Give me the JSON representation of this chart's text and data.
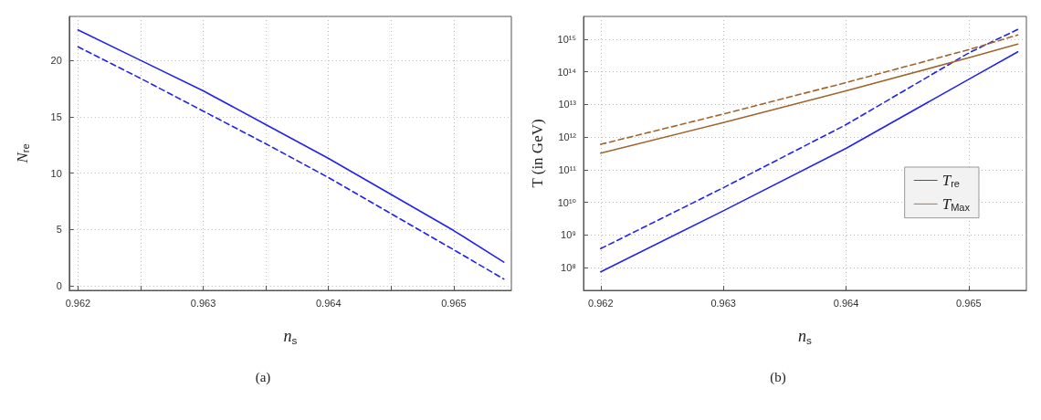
{
  "chart_data": [
    {
      "type": "line",
      "xlabel": "n$_{s}$",
      "ylabel": "N$_{re}$",
      "annotations": [
        "(a)"
      ],
      "xlim": [
        0.96193,
        0.96546
      ],
      "ylim": [
        -0.4,
        23.9
      ],
      "xticks": [
        0.962,
        {
          "value": 0.9625,
          "label": null
        },
        0.963,
        {
          "value": 0.9635,
          "label": null
        },
        0.964,
        {
          "value": 0.9645,
          "label": null
        },
        0.965
      ],
      "yticks": [
        0,
        5,
        10,
        15,
        20
      ],
      "grid": true,
      "legend": false,
      "marker": "none",
      "series": [
        {
          "color": "#2323f0",
          "line_style": "solid",
          "x": [
            0.962,
            0.9625,
            0.963,
            0.9635,
            0.964,
            0.9645,
            0.965,
            0.9654
          ],
          "values": [
            22.7,
            20.0,
            17.3,
            14.3,
            11.3,
            8.1,
            4.9,
            2.1
          ]
        },
        {
          "color": "#2323f0",
          "line_style": "dashed",
          "x": [
            0.962,
            0.9625,
            0.963,
            0.9635,
            0.964,
            0.9645,
            0.965,
            0.9654
          ],
          "values": [
            21.2,
            18.4,
            15.5,
            12.6,
            9.6,
            6.4,
            3.2,
            0.6
          ]
        }
      ]
    },
    {
      "type": "line",
      "xlabel": "n$_{s}$",
      "ylabel": "T (in GeV)",
      "annotations": [
        "(b)"
      ],
      "log": "y",
      "xlim": [
        0.96186,
        0.96547
      ],
      "ylim": [
        20000000.0,
        5000000000000000.0
      ],
      "xticks": [
        0.962,
        0.963,
        0.964,
        0.965
      ],
      "yticks": [
        {
          "value": 100000000.0,
          "label": "10⁸"
        },
        {
          "value": 1000000000.0,
          "label": "10⁹"
        },
        {
          "value": 10000000000.0,
          "label": "10¹⁰"
        },
        {
          "value": 100000000000.0,
          "label": "10¹¹"
        },
        {
          "value": 1000000000000.0,
          "label": "10¹²"
        },
        {
          "value": 10000000000000.0,
          "label": "10¹³"
        },
        {
          "value": 100000000000000.0,
          "label": "10¹⁴"
        },
        {
          "value": 1000000000000000.0,
          "label": "10¹⁵"
        }
      ],
      "grid": true,
      "legend": "right",
      "marker": "none",
      "series": [
        {
          "name": "T$_{re}$",
          "color": "#2323f0",
          "line_style": "solid",
          "x": [
            0.962,
            0.963,
            0.964,
            0.965,
            0.9654
          ],
          "values": [
            74000000.0,
            5500000000.0,
            450000000000.0,
            59000000000000.0,
            410000000000000.0
          ]
        },
        {
          "color": "#2323f0",
          "line_style": "dashed",
          "x": [
            0.962,
            0.963,
            0.964,
            0.965,
            0.9654
          ],
          "values": [
            380000000.0,
            28000000000.0,
            2400000000000.0,
            380000000000000.0,
            2000000000000000.0
          ]
        },
        {
          "name": "T$_{Max}$",
          "color": "#a0652a",
          "line_style": "solid",
          "x": [
            0.962,
            0.963,
            0.964,
            0.965,
            0.9654
          ],
          "values": [
            320000000000.0,
            2800000000000.0,
            26000000000000.0,
            270000000000000.0,
            710000000000000.0
          ]
        },
        {
          "color": "#a0652a",
          "line_style": "dashed",
          "x": [
            0.962,
            0.963,
            0.964,
            0.965,
            0.9654
          ],
          "values": [
            600000000000.0,
            5100000000000.0,
            47000000000000.0,
            480000000000000.0,
            1350000000000000.0
          ]
        }
      ]
    }
  ]
}
